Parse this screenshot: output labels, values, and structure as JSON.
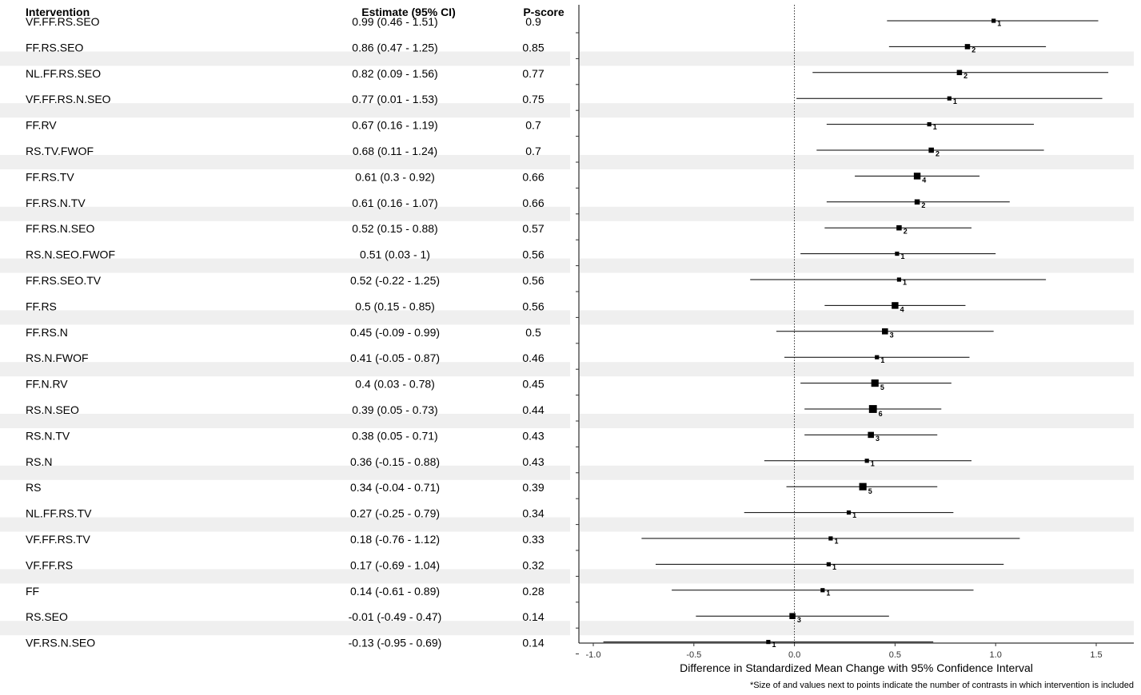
{
  "chart_data": {
    "type": "forest",
    "columns": {
      "intervention": "Intervention",
      "estimate": "Estimate (95% CI)",
      "pscore": "P-score"
    },
    "xlabel": "Difference in Standardized Mean Change with 95% Confidence Interval",
    "footnote": "*Size of and values next to points indicate the number of contrasts in which intervention is included",
    "xlim": [
      -1.05,
      1.6
    ],
    "ticks": [
      -1.0,
      -0.5,
      0.0,
      0.5,
      1.0,
      1.5
    ],
    "tick_labels": [
      "-1.0",
      "-0.5",
      "0.0",
      "0.5",
      "1.0",
      "1.5"
    ],
    "reference_line": 0,
    "rows": [
      {
        "name": "VF.FF.RS.SEO",
        "label": "0.99 (0.46 - 1.51)",
        "pscore": "0.9",
        "est": 0.99,
        "lo": 0.46,
        "hi": 1.51,
        "n": 1,
        "count_label": "1"
      },
      {
        "name": "FF.RS.SEO",
        "label": "0.86 (0.47 - 1.25)",
        "pscore": "0.85",
        "est": 0.86,
        "lo": 0.47,
        "hi": 1.25,
        "n": 2,
        "count_label": "2"
      },
      {
        "name": "NL.FF.RS.SEO",
        "label": "0.82 (0.09 - 1.56)",
        "pscore": "0.77",
        "est": 0.82,
        "lo": 0.09,
        "hi": 1.56,
        "n": 2,
        "count_label": "2"
      },
      {
        "name": "VF.FF.RS.N.SEO",
        "label": "0.77 (0.01 - 1.53)",
        "pscore": "0.75",
        "est": 0.77,
        "lo": 0.01,
        "hi": 1.53,
        "n": 1,
        "count_label": "1"
      },
      {
        "name": "FF.RV",
        "label": "0.67 (0.16 - 1.19)",
        "pscore": "0.7",
        "est": 0.67,
        "lo": 0.16,
        "hi": 1.19,
        "n": 1,
        "count_label": "1"
      },
      {
        "name": "RS.TV.FWOF",
        "label": "0.68 (0.11 - 1.24)",
        "pscore": "0.7",
        "est": 0.68,
        "lo": 0.11,
        "hi": 1.24,
        "n": 2,
        "count_label": "2"
      },
      {
        "name": "FF.RS.TV",
        "label": "0.61 (0.3 - 0.92)",
        "pscore": "0.66",
        "est": 0.61,
        "lo": 0.3,
        "hi": 0.92,
        "n": 4,
        "count_label": "4"
      },
      {
        "name": "FF.RS.N.TV",
        "label": "0.61 (0.16 - 1.07)",
        "pscore": "0.66",
        "est": 0.61,
        "lo": 0.16,
        "hi": 1.07,
        "n": 2,
        "count_label": "2"
      },
      {
        "name": "FF.RS.N.SEO",
        "label": "0.52 (0.15 - 0.88)",
        "pscore": "0.57",
        "est": 0.52,
        "lo": 0.15,
        "hi": 0.88,
        "n": 2,
        "count_label": "2"
      },
      {
        "name": "RS.N.SEO.FWOF",
        "label": "0.51 (0.03 - 1)",
        "pscore": "0.56",
        "est": 0.51,
        "lo": 0.03,
        "hi": 1.0,
        "n": 1,
        "count_label": "1"
      },
      {
        "name": "FF.RS.SEO.TV",
        "label": "0.52 (-0.22 - 1.25)",
        "pscore": "0.56",
        "est": 0.52,
        "lo": -0.22,
        "hi": 1.25,
        "n": 1,
        "count_label": "1"
      },
      {
        "name": "FF.RS",
        "label": "0.5 (0.15 - 0.85)",
        "pscore": "0.56",
        "est": 0.5,
        "lo": 0.15,
        "hi": 0.85,
        "n": 4,
        "count_label": "4"
      },
      {
        "name": "FF.RS.N",
        "label": "0.45 (-0.09 - 0.99)",
        "pscore": "0.5",
        "est": 0.45,
        "lo": -0.09,
        "hi": 0.99,
        "n": 3,
        "count_label": "3"
      },
      {
        "name": "RS.N.FWOF",
        "label": "0.41 (-0.05 - 0.87)",
        "pscore": "0.46",
        "est": 0.41,
        "lo": -0.05,
        "hi": 0.87,
        "n": 1,
        "count_label": "1"
      },
      {
        "name": "FF.N.RV",
        "label": "0.4 (0.03 - 0.78)",
        "pscore": "0.45",
        "est": 0.4,
        "lo": 0.03,
        "hi": 0.78,
        "n": 5,
        "count_label": "5"
      },
      {
        "name": "RS.N.SEO",
        "label": "0.39 (0.05 - 0.73)",
        "pscore": "0.44",
        "est": 0.39,
        "lo": 0.05,
        "hi": 0.73,
        "n": 6,
        "count_label": "6"
      },
      {
        "name": "RS.N.TV",
        "label": "0.38 (0.05 - 0.71)",
        "pscore": "0.43",
        "est": 0.38,
        "lo": 0.05,
        "hi": 0.71,
        "n": 3,
        "count_label": "3"
      },
      {
        "name": "RS.N",
        "label": "0.36 (-0.15 - 0.88)",
        "pscore": "0.43",
        "est": 0.36,
        "lo": -0.15,
        "hi": 0.88,
        "n": 1,
        "count_label": "1"
      },
      {
        "name": "RS",
        "label": "0.34 (-0.04 - 0.71)",
        "pscore": "0.39",
        "est": 0.34,
        "lo": -0.04,
        "hi": 0.71,
        "n": 5,
        "count_label": "5"
      },
      {
        "name": "NL.FF.RS.TV",
        "label": "0.27 (-0.25 - 0.79)",
        "pscore": "0.34",
        "est": 0.27,
        "lo": -0.25,
        "hi": 0.79,
        "n": 1,
        "count_label": "1"
      },
      {
        "name": "VF.FF.RS.TV",
        "label": "0.18 (-0.76 - 1.12)",
        "pscore": "0.33",
        "est": 0.18,
        "lo": -0.76,
        "hi": 1.12,
        "n": 1,
        "count_label": "1"
      },
      {
        "name": "VF.FF.RS",
        "label": "0.17 (-0.69 - 1.04)",
        "pscore": "0.32",
        "est": 0.17,
        "lo": -0.69,
        "hi": 1.04,
        "n": 1,
        "count_label": "1"
      },
      {
        "name": "FF",
        "label": "0.14 (-0.61 - 0.89)",
        "pscore": "0.28",
        "est": 0.14,
        "lo": -0.61,
        "hi": 0.89,
        "n": 1,
        "count_label": "1"
      },
      {
        "name": "RS.SEO",
        "label": "-0.01 (-0.49 - 0.47)",
        "pscore": "0.14",
        "est": -0.01,
        "lo": -0.49,
        "hi": 0.47,
        "n": 3,
        "count_label": "3"
      },
      {
        "name": "VF.RS.N.SEO",
        "label": "-0.13 (-0.95 - 0.69)",
        "pscore": "0.14",
        "est": -0.13,
        "lo": -0.95,
        "hi": 0.69,
        "n": 1,
        "count_label": "1"
      }
    ]
  }
}
